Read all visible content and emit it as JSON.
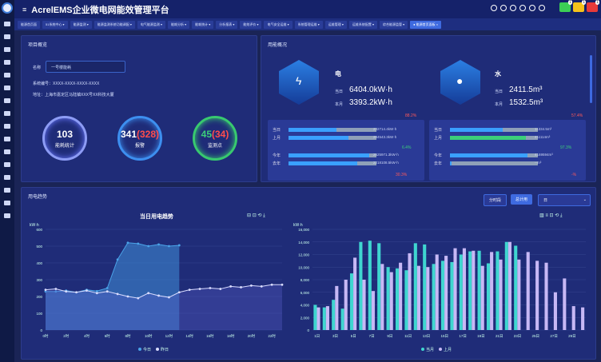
{
  "header": {
    "title": "AcrelEMS企业微电网能效管理平台",
    "menu_icon": "hamburger-icon",
    "badges": [
      {
        "color": "#3ccf55",
        "count": "1"
      },
      {
        "color": "#f5c21a",
        "count": "1"
      },
      {
        "color": "#e83a3a",
        "count": "1"
      }
    ]
  },
  "tabs": [
    {
      "label": "能源首页面"
    },
    {
      "label": "51系统中心 ▾"
    },
    {
      "label": "能源监测 ▾"
    },
    {
      "label": "能源监测系统功能调配 ▾"
    },
    {
      "label": "电气能源监测 ▾"
    },
    {
      "label": "能耗分析 ▾"
    },
    {
      "label": "能耗统计 ▾"
    },
    {
      "label": "分析报表 ▾"
    },
    {
      "label": "能效评价 ▾"
    },
    {
      "label": "电气安全运维 ▾"
    },
    {
      "label": "系统管理运维 ▾"
    },
    {
      "label": "运维管理 ▾"
    },
    {
      "label": "运维系统配置 ▾"
    },
    {
      "label": "综合能源监管 ▾"
    },
    {
      "label": "● 能源首页面板 ×"
    }
  ],
  "overview": {
    "title": "项目概览",
    "name_label": "名称",
    "name_value": "一号楼能耗",
    "line1": "系统编号：XXXX-XXXX-XXXX-XXXX",
    "line2": "地址：上海市嘉定区马陆镇XXX号XX科技大厦",
    "stats": [
      {
        "value": "103",
        "extra": "",
        "caption": "能耗统计",
        "color": "#9aa7ff"
      },
      {
        "value": "341",
        "extra": "(328)",
        "caption": "报警",
        "color": "#4f8ff0"
      },
      {
        "value": "45",
        "extra": "(34)",
        "caption": "监测点",
        "color": "#3ccf7a"
      }
    ]
  },
  "energy": {
    "title": "用能概况",
    "electric": {
      "name": "电",
      "today_label": "当日",
      "today": "6404.0kW·h",
      "month_label": "本月",
      "month": "3393.2kW·h",
      "pct": "88.2%",
      "rows": [
        {
          "label": "当日",
          "value": "232714.4kW·h",
          "fill": 0.55
        },
        {
          "label": "上月",
          "value": "284543.3kW·h",
          "fill": 0.68
        },
        {
          "label": "今年",
          "value": "2625971.3kW·h",
          "fill": 0.92,
          "tag": "6.4%"
        },
        {
          "label": "去年",
          "value": "2218108.5kW·h",
          "fill": 0.78
        }
      ],
      "bottom_pct": "30.3%"
    },
    "water": {
      "name": "水",
      "today_label": "当日",
      "today": "2411.5m³",
      "month_label": "本月",
      "month": "1532.5m³",
      "pct": "57.4%",
      "rows": [
        {
          "label": "当日",
          "value": "11334.5m³",
          "fill": 0.6
        },
        {
          "label": "上月",
          "value": "411114m³",
          "fill": 0.86
        },
        {
          "label": "今年",
          "value": "4169594m³",
          "fill": 0.88,
          "tag": "97.3%"
        },
        {
          "label": "去年",
          "value": "--m³",
          "fill": 0.02
        }
      ],
      "bottom_pct": "-%"
    }
  },
  "trend": {
    "title": "用电趋势",
    "buttons": [
      "分时段",
      "总计用",
      "日"
    ],
    "select_value": "日"
  },
  "chart_data": [
    {
      "type": "area",
      "title": "当日用电趋势",
      "ylabel": "kW·h",
      "ylim": [
        0,
        600
      ],
      "yticks": [
        0,
        100,
        200,
        300,
        400,
        500,
        600
      ],
      "x": [
        "0时",
        "1时",
        "2时",
        "3时",
        "4时",
        "5时",
        "6时",
        "7时",
        "8时",
        "9时",
        "10时",
        "11时",
        "12时",
        "13时",
        "14时",
        "15时",
        "16时",
        "17时",
        "18时",
        "19时",
        "20时",
        "21时",
        "22时",
        "23时"
      ],
      "xticks": [
        "0时",
        "2时",
        "4时",
        "6时",
        "8时",
        "10时",
        "12时",
        "14时",
        "16时",
        "18时",
        "20时",
        "22时"
      ],
      "series": [
        {
          "name": "今日",
          "color": "#4aa3e8",
          "values": [
            230,
            230,
            235,
            225,
            240,
            232,
            250,
            420,
            520,
            515,
            500,
            510,
            500,
            505,
            null,
            null,
            null,
            null,
            null,
            null,
            null,
            null,
            null,
            null
          ]
        },
        {
          "name": "昨日",
          "color": "#d9dcff",
          "values": [
            240,
            245,
            230,
            225,
            235,
            220,
            230,
            215,
            200,
            190,
            220,
            205,
            195,
            225,
            240,
            245,
            250,
            245,
            260,
            255,
            265,
            260,
            270,
            270
          ]
        }
      ],
      "legend": "bottom"
    },
    {
      "type": "bar",
      "ylabel": "kW·h",
      "ylim": [
        0,
        16000
      ],
      "yticks": [
        0,
        2000,
        4000,
        6000,
        8000,
        10000,
        12000,
        14000,
        16000
      ],
      "categories": [
        "1日",
        "2日",
        "3日",
        "4日",
        "5日",
        "6日",
        "7日",
        "8日",
        "9日",
        "10日",
        "11日",
        "12日",
        "13日",
        "14日",
        "15日",
        "16日",
        "17日",
        "18日",
        "19日",
        "20日",
        "21日",
        "22日",
        "23日",
        "24日",
        "25日",
        "26日",
        "27日",
        "28日",
        "29日",
        "30日"
      ],
      "xticks": [
        "1日",
        "3日",
        "5日",
        "7日",
        "9日",
        "11日",
        "13日",
        "15日",
        "17日",
        "19日",
        "21日",
        "23日",
        "25日",
        "27日",
        "29日"
      ],
      "series": [
        {
          "name": "当月",
          "color": "#3fd6d0",
          "values": [
            4000,
            3600,
            4800,
            3400,
            9000,
            14000,
            14200,
            13800,
            10000,
            9800,
            9500,
            13800,
            13600,
            10500,
            11000,
            10800,
            12000,
            12500,
            12600,
            10600,
            12500,
            14000,
            13400,
            0,
            0,
            0,
            0,
            0,
            0,
            0
          ]
        },
        {
          "name": "上月",
          "color": "#c7b8f5",
          "values": [
            3600,
            3800,
            7000,
            8000,
            11500,
            8000,
            6200,
            10500,
            9200,
            10700,
            12200,
            10200,
            10000,
            12000,
            11800,
            13000,
            13000,
            12600,
            10200,
            12400,
            11200,
            14000,
            11200,
            12400,
            11000,
            10700,
            6000,
            8200,
            3800,
            3600
          ]
        }
      ],
      "legend": "bottom"
    }
  ]
}
